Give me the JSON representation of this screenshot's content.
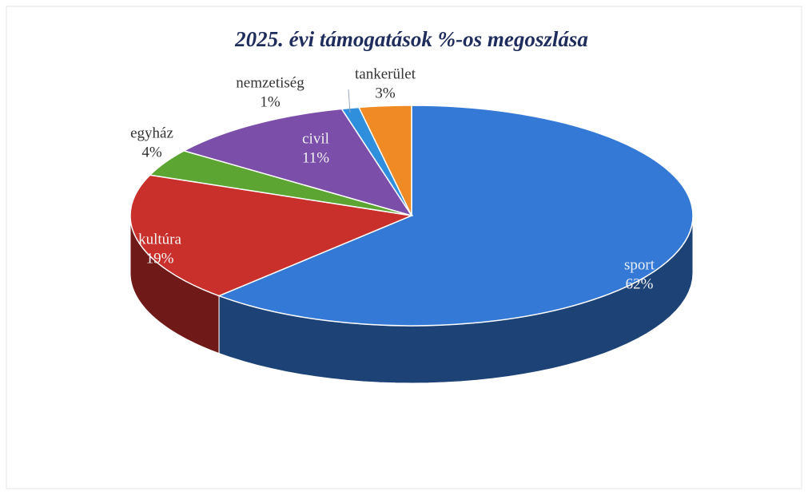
{
  "chart_data": {
    "type": "pie",
    "title": "2025. évi támogatások %-os megoszlása",
    "categories": [
      "sport",
      "kultúra",
      "egyház",
      "civil",
      "nemzetiség",
      "tankerület"
    ],
    "values": [
      62,
      19,
      4,
      11,
      1,
      3
    ],
    "value_labels": [
      "62%",
      "19%",
      "4%",
      "11%",
      "1%",
      "3%"
    ],
    "colors": [
      "#3479d6",
      "#c9302c",
      "#5ca533",
      "#7a4ea9",
      "#2f8fdc",
      "#f08a24"
    ]
  }
}
